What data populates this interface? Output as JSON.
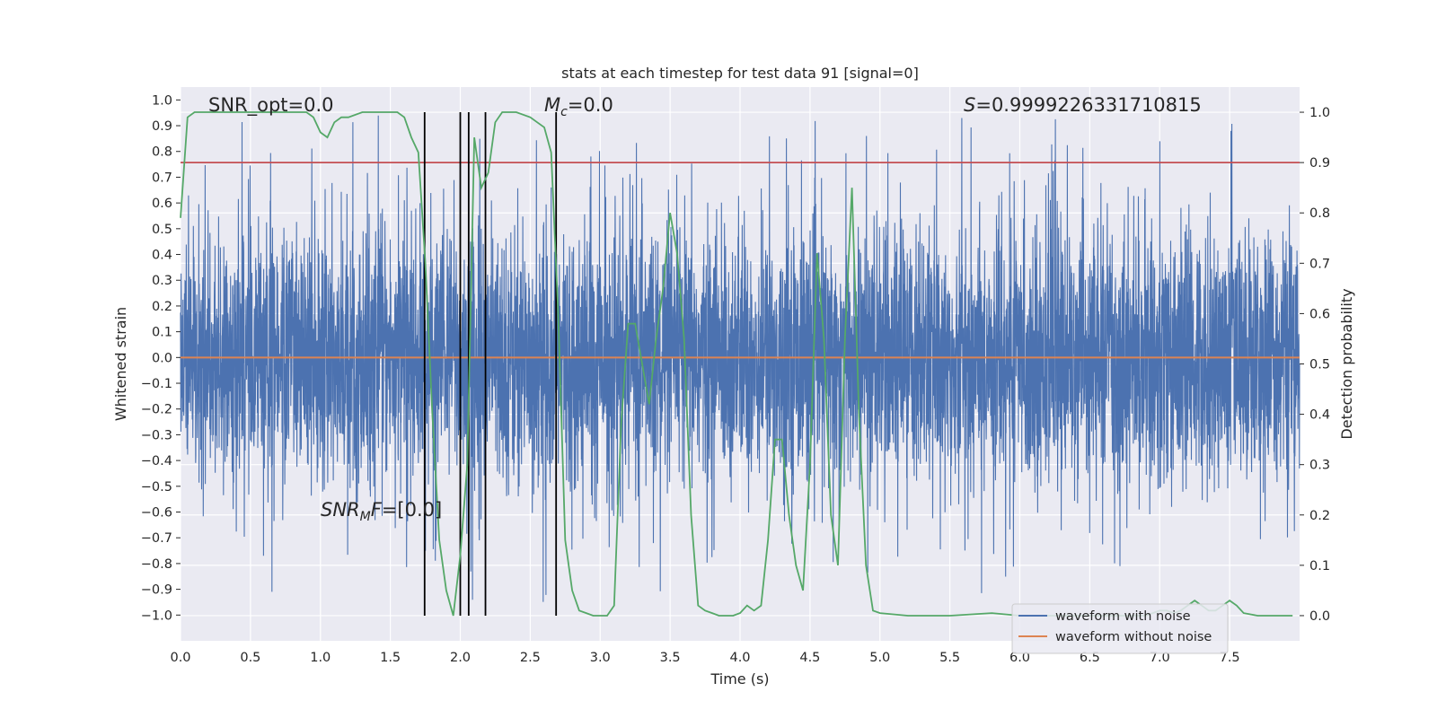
{
  "chart_data": {
    "type": "line",
    "title": "stats at each timestep for test data 91 [signal=0]",
    "xlabel": "Time (s)",
    "ylabel": "Whitened strain",
    "y2label": "Detection probability",
    "xlim": [
      0,
      8
    ],
    "ylim": [
      -1.1,
      1.05
    ],
    "y2lim": [
      -0.05,
      1.05
    ],
    "x_ticks": [
      "0.0",
      "0.5",
      "1.0",
      "1.5",
      "2.0",
      "2.5",
      "3.0",
      "3.5",
      "4.0",
      "4.5",
      "5.0",
      "5.5",
      "6.0",
      "6.5",
      "7.0",
      "7.5"
    ],
    "y_ticks": [
      "1.0",
      "0.9",
      "0.8",
      "0.7",
      "0.6",
      "0.5",
      "0.4",
      "0.3",
      "0.2",
      "0.1",
      "0.0",
      "−0.1",
      "−0.2",
      "−0.3",
      "−0.4",
      "−0.5",
      "−0.6",
      "−0.7",
      "−0.8",
      "−0.9",
      "−1.0"
    ],
    "y2_ticks": [
      "1.0",
      "0.9",
      "0.8",
      "0.7",
      "0.6",
      "0.5",
      "0.4",
      "0.3",
      "0.2",
      "0.1",
      "0.0"
    ],
    "grid": true,
    "legend_position": "lower-right",
    "colors": {
      "background": "#eaeaf2",
      "grid": "#ffffff",
      "noisy": "#4c72b0",
      "clean": "#dd8452",
      "prob": "#55a868",
      "threshold": "#c44e52",
      "markers": "#000000"
    },
    "annotations": {
      "snr_opt": "SNR_opt=0.0",
      "mc_symbol": "M",
      "mc_sub": "c",
      "mc_value": "=0.0",
      "s_symbol": "S",
      "s_value": "=0.9999226331710815",
      "snrmf_symbol": "SNR",
      "snrmf_sub": "M",
      "snrmf_mid": "F",
      "snrmf_value": "=[0.0]"
    },
    "series": [
      {
        "name": "waveform with noise",
        "kind": "noise",
        "envelope_typical": 0.55,
        "envelope_max": 1.0
      },
      {
        "name": "waveform without noise",
        "kind": "constant",
        "value": 0.0
      },
      {
        "kind": "probability",
        "x": [
          0.0,
          0.05,
          0.1,
          0.15,
          0.2,
          0.3,
          0.4,
          0.5,
          0.6,
          0.7,
          0.8,
          0.9,
          0.95,
          1.0,
          1.05,
          1.1,
          1.15,
          1.2,
          1.3,
          1.4,
          1.5,
          1.55,
          1.6,
          1.65,
          1.7,
          1.75,
          1.8,
          1.85,
          1.9,
          1.95,
          2.0,
          2.05,
          2.1,
          2.15,
          2.2,
          2.25,
          2.3,
          2.35,
          2.4,
          2.5,
          2.55,
          2.6,
          2.65,
          2.7,
          2.75,
          2.8,
          2.85,
          2.9,
          2.95,
          3.0,
          3.05,
          3.1,
          3.15,
          3.2,
          3.25,
          3.3,
          3.35,
          3.4,
          3.45,
          3.5,
          3.55,
          3.6,
          3.65,
          3.7,
          3.75,
          3.8,
          3.85,
          3.9,
          3.95,
          4.0,
          4.05,
          4.1,
          4.15,
          4.2,
          4.25,
          4.3,
          4.35,
          4.4,
          4.45,
          4.5,
          4.55,
          4.6,
          4.65,
          4.7,
          4.75,
          4.8,
          4.85,
          4.9,
          4.95,
          5.0,
          5.2,
          5.5,
          5.8,
          6.0,
          6.3,
          6.5,
          6.7,
          6.9,
          7.0,
          7.05,
          7.1,
          7.15,
          7.2,
          7.25,
          7.3,
          7.35,
          7.4,
          7.45,
          7.5,
          7.55,
          7.6,
          7.7,
          7.8,
          7.9,
          7.95
        ],
        "y": [
          0.79,
          0.99,
          1.0,
          1.0,
          1.0,
          1.0,
          1.0,
          1.0,
          1.0,
          1.0,
          1.0,
          1.0,
          0.99,
          0.96,
          0.95,
          0.98,
          0.99,
          0.99,
          1.0,
          1.0,
          1.0,
          1.0,
          0.99,
          0.95,
          0.92,
          0.7,
          0.4,
          0.15,
          0.05,
          0.0,
          0.12,
          0.3,
          0.95,
          0.85,
          0.88,
          0.98,
          1.0,
          1.0,
          1.0,
          0.99,
          0.98,
          0.97,
          0.92,
          0.6,
          0.15,
          0.05,
          0.01,
          0.005,
          0.0,
          0.0,
          0.0,
          0.02,
          0.38,
          0.58,
          0.58,
          0.5,
          0.42,
          0.55,
          0.65,
          0.8,
          0.72,
          0.55,
          0.2,
          0.02,
          0.01,
          0.005,
          0.0,
          0.0,
          0.0,
          0.005,
          0.02,
          0.01,
          0.02,
          0.15,
          0.35,
          0.35,
          0.2,
          0.1,
          0.05,
          0.3,
          0.72,
          0.55,
          0.2,
          0.1,
          0.55,
          0.85,
          0.4,
          0.1,
          0.01,
          0.005,
          0.0,
          0.0,
          0.005,
          0.0,
          0.0,
          0.0,
          0.0,
          0.0,
          0.01,
          0.01,
          0.005,
          0.01,
          0.02,
          0.03,
          0.02,
          0.01,
          0.01,
          0.02,
          0.03,
          0.02,
          0.005,
          0.0,
          0.0,
          0.0,
          0.0
        ]
      },
      {
        "kind": "threshold",
        "value": 0.9
      },
      {
        "kind": "markers",
        "x": [
          1.745,
          2.0,
          2.06,
          2.18,
          2.685
        ]
      }
    ]
  }
}
